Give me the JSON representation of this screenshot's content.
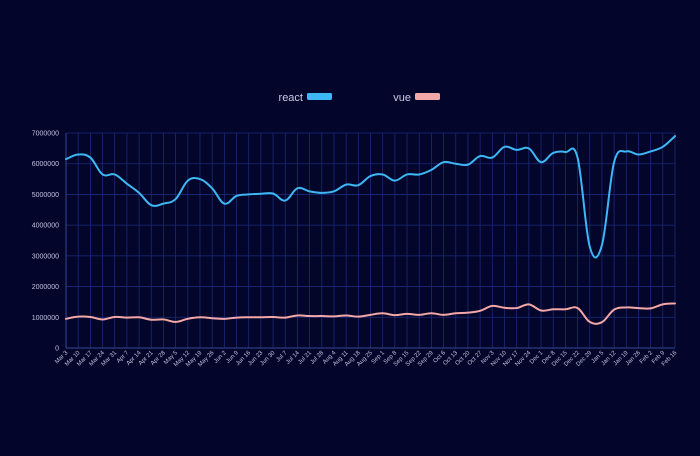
{
  "chart_data": {
    "type": "line",
    "title": "",
    "xlabel": "",
    "ylabel": "",
    "ylim": [
      0,
      7000000
    ],
    "y_ticks": [
      0,
      1000000,
      2000000,
      3000000,
      4000000,
      5000000,
      6000000,
      7000000
    ],
    "grid": true,
    "legend_position": "top-center",
    "categories": [
      "Mar 3",
      "Mar 10",
      "Mar 17",
      "Mar 24",
      "Mar 31",
      "Apr 7",
      "Apr 14",
      "Apr 21",
      "Apr 28",
      "May 5",
      "May 12",
      "May 19",
      "May 26",
      "Jun 2",
      "Jun 9",
      "Jun 16",
      "Jun 23",
      "Jun 30",
      "Jul 7",
      "Jul 14",
      "Jul 21",
      "Jul 28",
      "Aug 4",
      "Aug 11",
      "Aug 18",
      "Aug 25",
      "Sep 1",
      "Sep 8",
      "Sep 15",
      "Sep 22",
      "Sep 29",
      "Oct 6",
      "Oct 13",
      "Oct 20",
      "Oct 27",
      "Nov 3",
      "Nov 10",
      "Nov 17",
      "Nov 24",
      "Dec 1",
      "Dec 8",
      "Dec 15",
      "Dec 22",
      "Dec 29",
      "Jan 5",
      "Jan 12",
      "Jan 19",
      "Jan 26",
      "Feb 2",
      "Feb 9",
      "Feb 16"
    ],
    "series": [
      {
        "name": "react",
        "color": "#3db8f5",
        "values": [
          6150000,
          6300000,
          6200000,
          5650000,
          5650000,
          5350000,
          5050000,
          4650000,
          4700000,
          4850000,
          5450000,
          5500000,
          5200000,
          4700000,
          4950000,
          5000000,
          5020000,
          5030000,
          4800000,
          5200000,
          5100000,
          5050000,
          5100000,
          5320000,
          5300000,
          5600000,
          5650000,
          5450000,
          5650000,
          5650000,
          5800000,
          6050000,
          6000000,
          5970000,
          6250000,
          6200000,
          6550000,
          6450000,
          6500000,
          6050000,
          6350000,
          6380000,
          6200000,
          3300000,
          3350000,
          6050000,
          6400000,
          6300000,
          6400000,
          6550000,
          6900000
        ]
      },
      {
        "name": "vue",
        "color": "#f4a7a7",
        "values": [
          950000,
          1020000,
          1010000,
          930000,
          1010000,
          990000,
          1000000,
          920000,
          930000,
          850000,
          950000,
          1000000,
          970000,
          950000,
          990000,
          1000000,
          1000000,
          1010000,
          990000,
          1060000,
          1040000,
          1040000,
          1030000,
          1060000,
          1020000,
          1080000,
          1130000,
          1070000,
          1110000,
          1080000,
          1130000,
          1080000,
          1130000,
          1150000,
          1210000,
          1370000,
          1310000,
          1300000,
          1420000,
          1220000,
          1260000,
          1260000,
          1300000,
          850000,
          840000,
          1250000,
          1320000,
          1300000,
          1290000,
          1420000,
          1450000
        ]
      }
    ]
  }
}
